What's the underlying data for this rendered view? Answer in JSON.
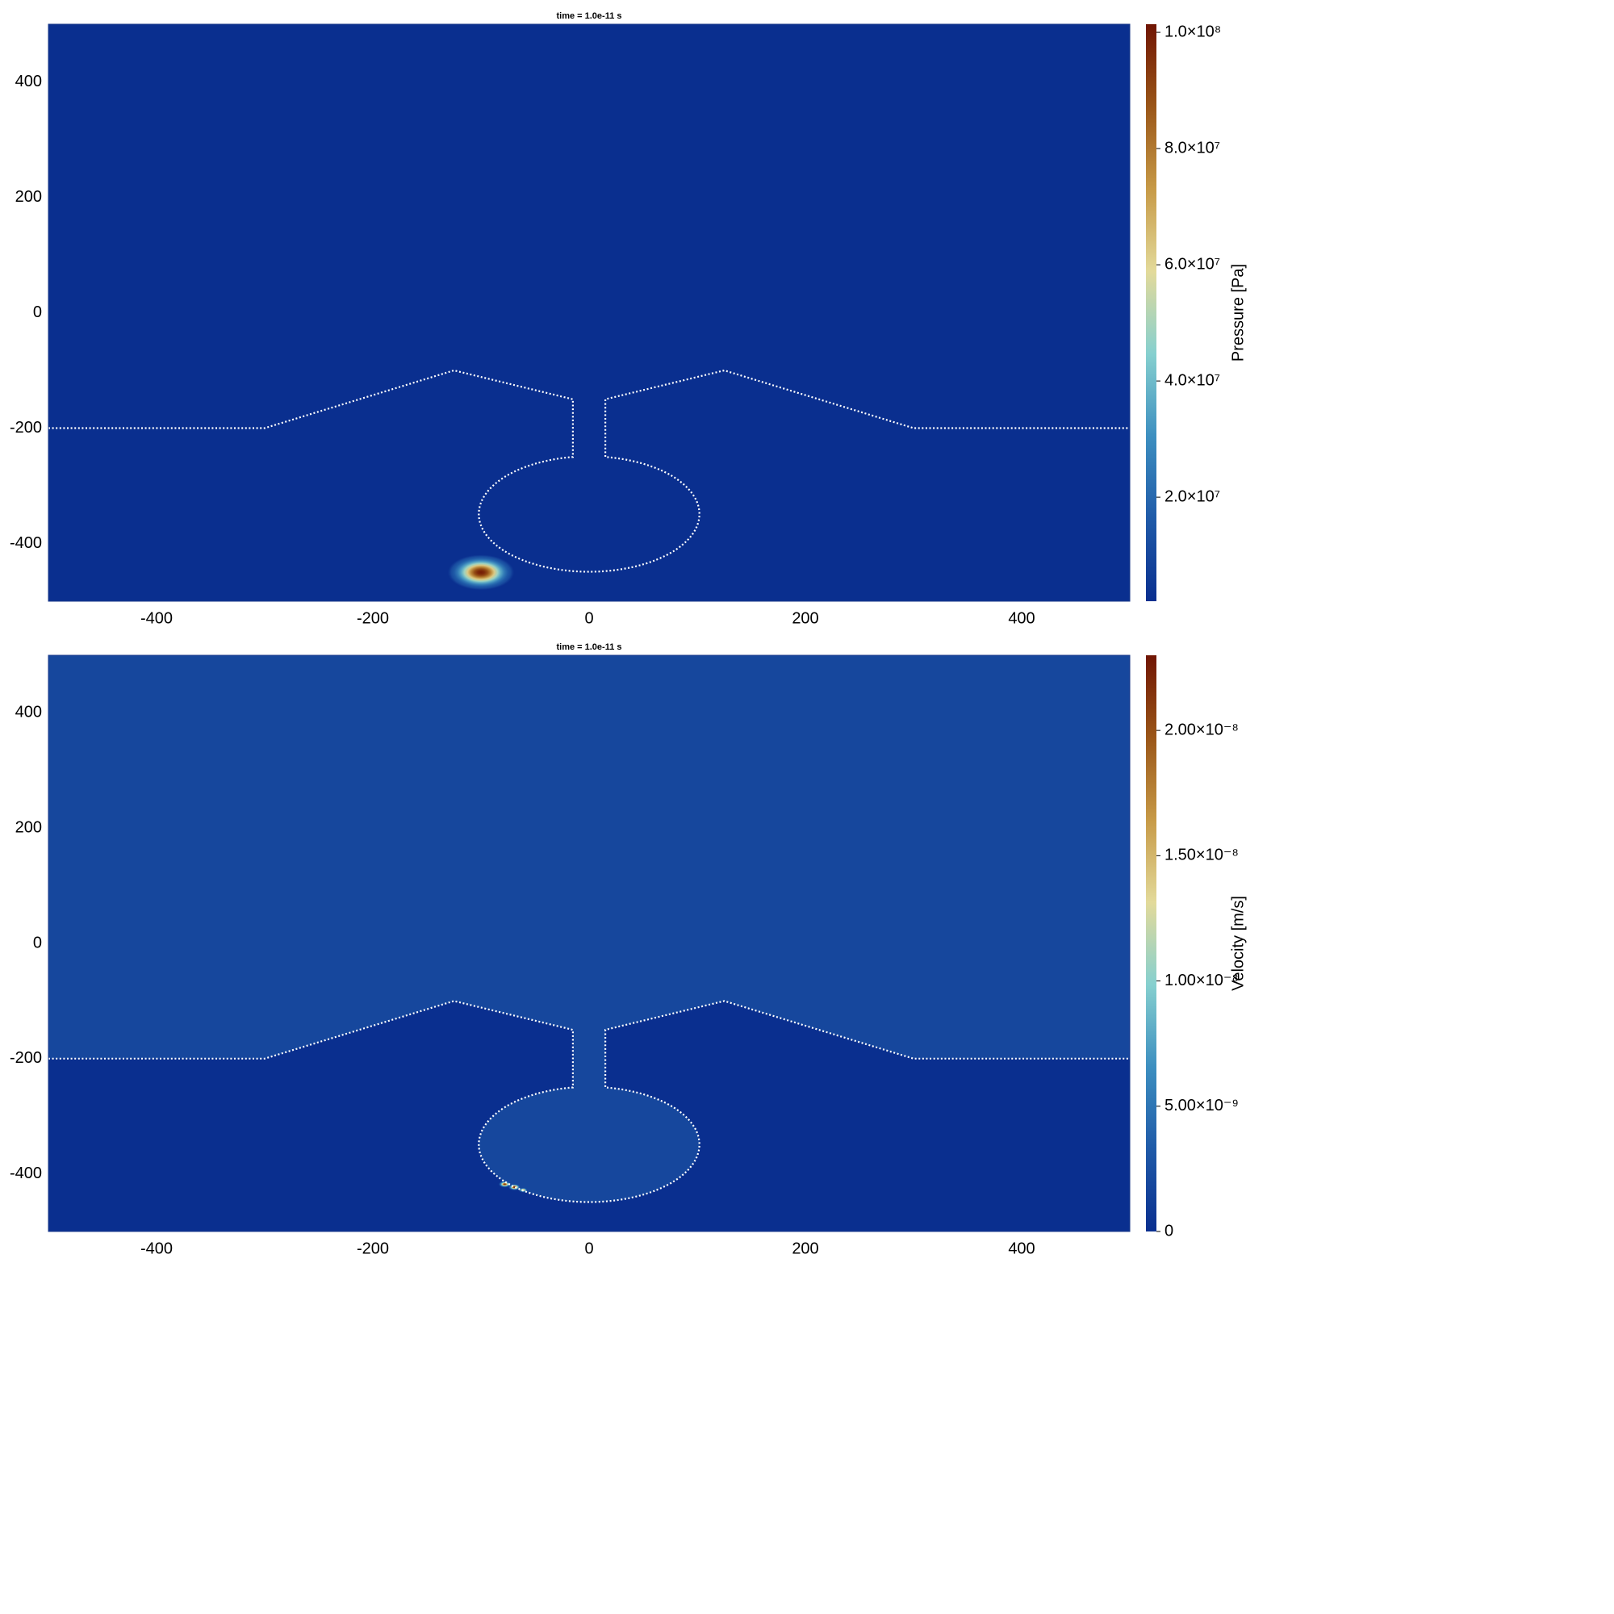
{
  "chart_data": [
    {
      "type": "heatmap",
      "title": "time = 1.0e-11 s",
      "xlim": [
        -500,
        500
      ],
      "ylim": [
        -500,
        500
      ],
      "xticks": [
        -400,
        -200,
        0,
        200,
        400
      ],
      "yticks": [
        -400,
        -200,
        0,
        200,
        400
      ],
      "background": 2100000,
      "sources": [
        {
          "x": -100,
          "y": -450,
          "value": 100000000,
          "radius": 22
        }
      ],
      "boundary": {
        "x": [
          -500,
          -300,
          -125,
          -15,
          -15,
          15,
          15,
          125,
          300,
          500
        ],
        "y": [
          -200,
          -200,
          -100,
          -150,
          -250,
          -250,
          -150,
          -100,
          -200,
          -200
        ]
      },
      "chamber": {
        "cx": 0,
        "cy": -350,
        "rx": 102,
        "ry": 100
      },
      "colorbar": {
        "label": "Pressure [Pa]",
        "lim": [
          2100000,
          101400000
        ],
        "ticks": [
          {
            "value": 20000000,
            "label": "2.0×10⁷"
          },
          {
            "value": 40000000,
            "label": "4.0×10⁷"
          },
          {
            "value": 60000000,
            "label": "6.0×10⁷"
          },
          {
            "value": 80000000,
            "label": "8.0×10⁷"
          },
          {
            "value": 100000000,
            "label": "1.0×10⁸"
          }
        ],
        "colormap": [
          "#0a2f8f",
          "#1f5aa8",
          "#3d8fc0",
          "#86d0cf",
          "#e3da9a",
          "#c79a47",
          "#9a5618",
          "#701503"
        ]
      }
    },
    {
      "type": "heatmap",
      "title": "time = 1.0e-11 s",
      "xlim": [
        -500,
        500
      ],
      "ylim": [
        -500,
        500
      ],
      "xticks": [
        -400,
        -200,
        0,
        200,
        400
      ],
      "yticks": [
        -400,
        -200,
        0,
        200,
        400
      ],
      "background": 0,
      "fluid_value": 1.8e-09,
      "sources": [
        {
          "x": -78,
          "y": -418,
          "value": 2.2e-08,
          "radius": 4
        },
        {
          "x": -69,
          "y": -423,
          "value": 2.3e-08,
          "radius": 4
        },
        {
          "x": -61,
          "y": -428,
          "value": 1.8e-08,
          "radius": 3
        }
      ],
      "boundary": {
        "x": [
          -500,
          -300,
          -125,
          -15,
          -15,
          15,
          15,
          125,
          300,
          500
        ],
        "y": [
          -200,
          -200,
          -100,
          -150,
          -250,
          -250,
          -150,
          -100,
          -200,
          -200
        ]
      },
      "chamber": {
        "cx": 0,
        "cy": -350,
        "rx": 102,
        "ry": 100
      },
      "colorbar": {
        "label": "Velocity [m/s]",
        "lim": [
          0,
          2.3e-08
        ],
        "ticks": [
          0,
          {
            "value": 5e-09,
            "label": "5.00×10⁻⁹"
          },
          {
            "value": 1e-08,
            "label": "1.00×10⁻⁸"
          },
          {
            "value": 1.5e-08,
            "label": "1.50×10⁻⁸"
          },
          {
            "value": 2e-08,
            "label": "2.00×10⁻⁸"
          }
        ],
        "colormap": [
          "#0a2f8f",
          "#1f5aa8",
          "#3d8fc0",
          "#86d0cf",
          "#e3da9a",
          "#c79a47",
          "#9a5618",
          "#701503"
        ]
      }
    }
  ]
}
